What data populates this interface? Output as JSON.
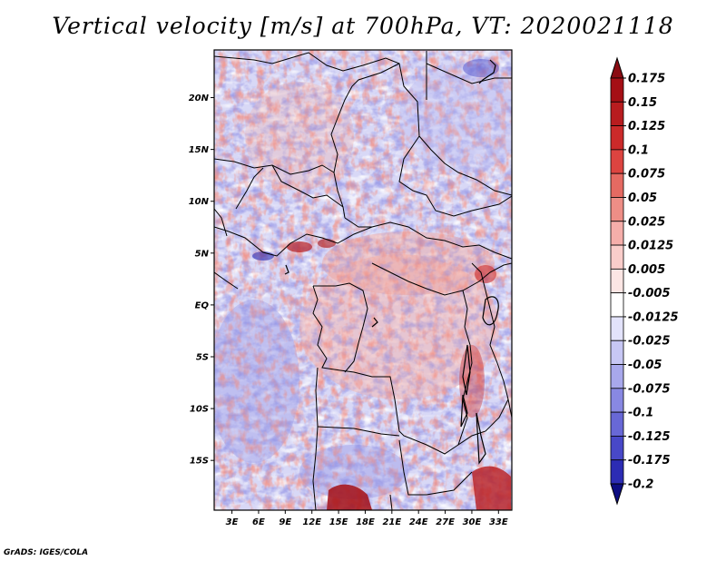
{
  "title": "Vertical velocity [m/s] at 700hPa, VT: 2020021118",
  "credit": "GrADS: IGES/COLA",
  "map": {
    "lon_range": [
      1,
      34.5
    ],
    "lat_range": [
      -19.8,
      24.6
    ],
    "lat_ticks": [
      {
        "lat": 20,
        "label": "20N"
      },
      {
        "lat": 15,
        "label": "15N"
      },
      {
        "lat": 10,
        "label": "10N"
      },
      {
        "lat": 5,
        "label": "5N"
      },
      {
        "lat": 0,
        "label": "EQ"
      },
      {
        "lat": -5,
        "label": "5S"
      },
      {
        "lat": -10,
        "label": "10S"
      },
      {
        "lat": -15,
        "label": "15S"
      }
    ],
    "lon_ticks": [
      {
        "lon": 3,
        "label": "3E"
      },
      {
        "lon": 6,
        "label": "6E"
      },
      {
        "lon": 9,
        "label": "9E"
      },
      {
        "lon": 12,
        "label": "12E"
      },
      {
        "lon": 15,
        "label": "15E"
      },
      {
        "lon": 18,
        "label": "18E"
      },
      {
        "lon": 21,
        "label": "21E"
      },
      {
        "lon": 24,
        "label": "24E"
      },
      {
        "lon": 27,
        "label": "27E"
      },
      {
        "lon": 30,
        "label": "30E"
      },
      {
        "lon": 33,
        "label": "33E"
      }
    ]
  },
  "colorbar": {
    "levels": [
      {
        "label": "0.175",
        "color": "#a50f15"
      },
      {
        "label": "0.15",
        "color": "#b81c1f"
      },
      {
        "label": "0.125",
        "color": "#cb2a2a"
      },
      {
        "label": "0.1",
        "color": "#dc4440"
      },
      {
        "label": "0.075",
        "color": "#e56a62"
      },
      {
        "label": "0.05",
        "color": "#ee8e86"
      },
      {
        "label": "0.025",
        "color": "#f5aeaa"
      },
      {
        "label": "0.0125",
        "color": "#f9cdca"
      },
      {
        "label": "0.005",
        "color": "#fce6e4"
      },
      {
        "label": "-0.005",
        "color": "#ffffff"
      },
      {
        "label": "-0.0125",
        "color": "#e3e3fb"
      },
      {
        "label": "-0.025",
        "color": "#c7c7f4"
      },
      {
        "label": "-0.05",
        "color": "#a8a8ec"
      },
      {
        "label": "-0.075",
        "color": "#8888e2"
      },
      {
        "label": "-0.1",
        "color": "#6868d6"
      },
      {
        "label": "-0.125",
        "color": "#4848c8"
      },
      {
        "label": "-0.175",
        "color": "#2c2cb4"
      },
      {
        "label": "-0.2",
        "color": "#15159a"
      }
    ],
    "top_color": "#8a0b12",
    "bottom_color": "#0d0d82"
  }
}
